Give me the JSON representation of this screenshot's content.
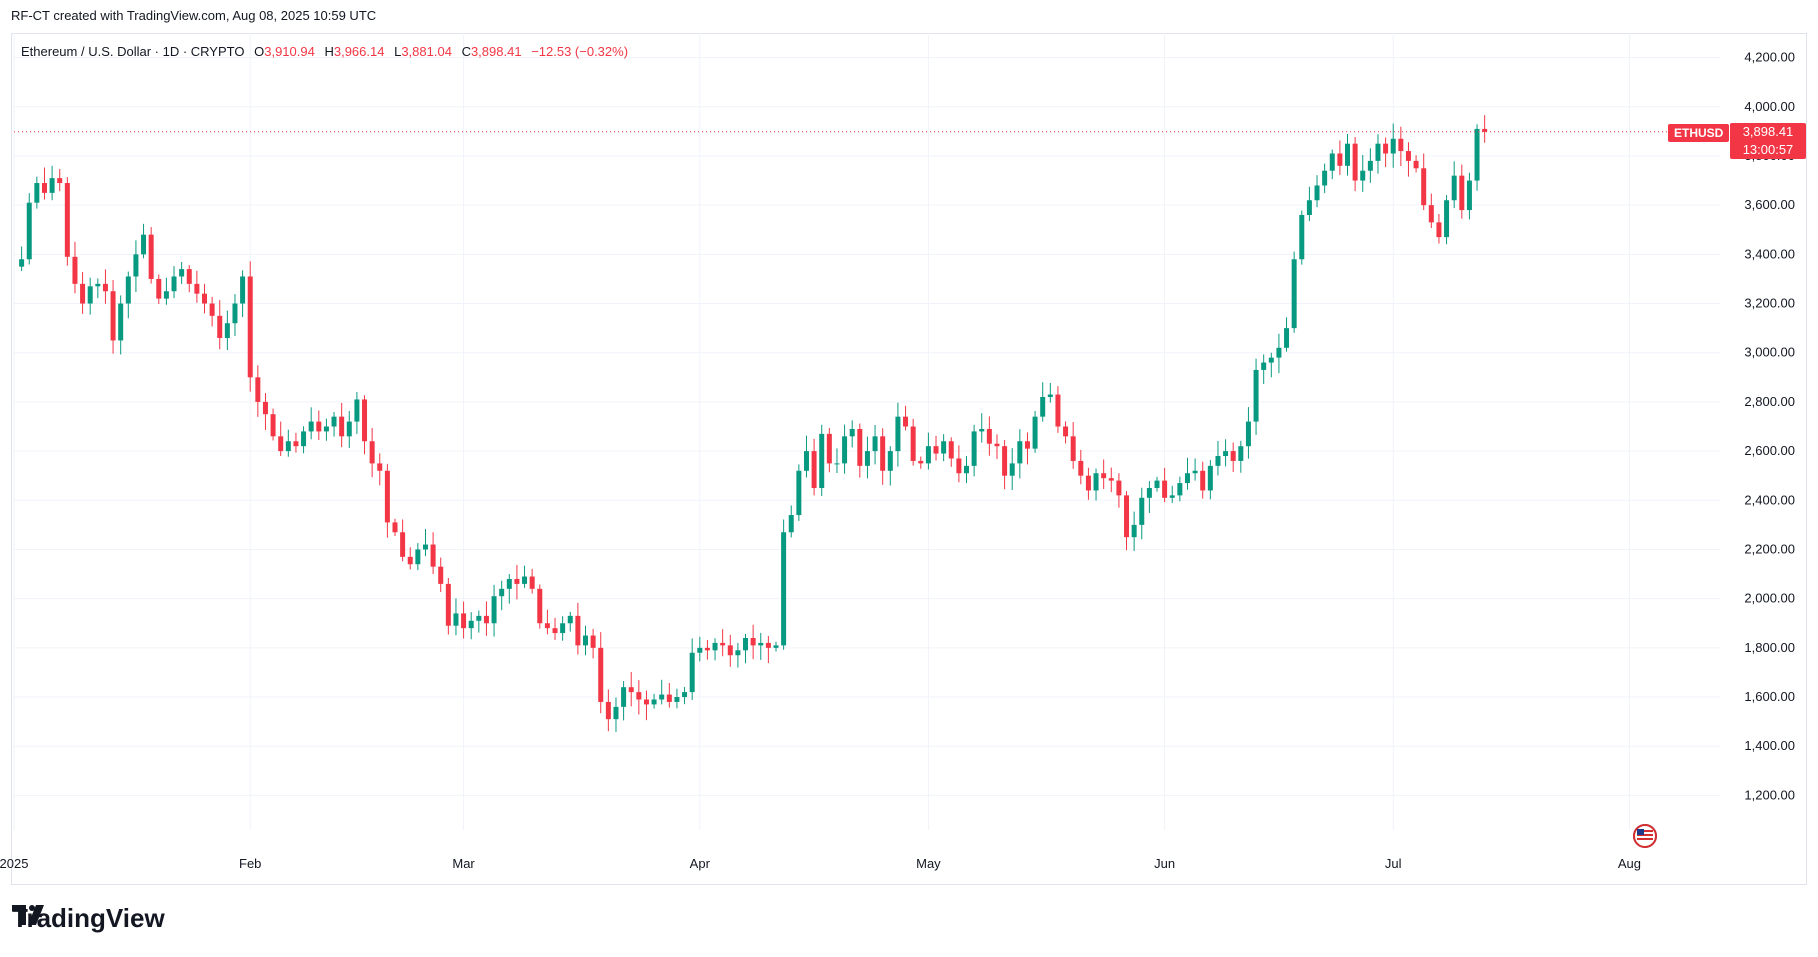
{
  "header": {
    "text": "RF-CT created with TradingView.com, Aug 08, 2025 10:59 UTC"
  },
  "legend": {
    "symbol": "Ethereum / U.S. Dollar · 1D · CRYPTO",
    "o_label": "O",
    "o_value": "3,910.94",
    "h_label": "H",
    "h_value": "3,966.14",
    "l_label": "L",
    "l_value": "3,881.04",
    "c_label": "C",
    "c_value": "3,898.41",
    "change": "−12.53 (−0.32%)"
  },
  "price_tag": {
    "symbol": "ETHUSD",
    "price": "3,898.41",
    "countdown": "13:00:57"
  },
  "footer": {
    "brand": "TradingView"
  },
  "colors": {
    "up": "#089981",
    "down": "#f23645",
    "grid": "#f0f3fa",
    "axis_text": "#131722"
  },
  "icons": [
    "tradingview-logo-icon",
    "lightning-icon",
    "us-flag-icon"
  ],
  "chart_data": {
    "type": "candlestick",
    "title": "Ethereum / U.S. Dollar · 1D · CRYPTO",
    "ylim": [
      1100,
      4300
    ],
    "yticks": [
      {
        "value": 1200,
        "label": "1,200.00"
      },
      {
        "value": 1400,
        "label": "1,400.00"
      },
      {
        "value": 1600,
        "label": "1,600.00"
      },
      {
        "value": 1800,
        "label": "1,800.00"
      },
      {
        "value": 2000,
        "label": "2,000.00"
      },
      {
        "value": 2200,
        "label": "2,200.00"
      },
      {
        "value": 2400,
        "label": "2,400.00"
      },
      {
        "value": 2600,
        "label": "2,600.00"
      },
      {
        "value": 2800,
        "label": "2,800.00"
      },
      {
        "value": 3000,
        "label": "3,000.00"
      },
      {
        "value": 3200,
        "label": "3,200.00"
      },
      {
        "value": 3400,
        "label": "3,400.00"
      },
      {
        "value": 3600,
        "label": "3,600.00"
      },
      {
        "value": 3800,
        "label": "3,800.00"
      },
      {
        "value": 4000,
        "label": "4,000.00"
      },
      {
        "value": 4200,
        "label": "4,200.00"
      }
    ],
    "xticks": [
      {
        "day": 0,
        "label": "2025"
      },
      {
        "day": 31,
        "label": "Feb"
      },
      {
        "day": 59,
        "label": "Mar"
      },
      {
        "day": 90,
        "label": "Apr"
      },
      {
        "day": 120,
        "label": "May"
      },
      {
        "day": 151,
        "label": "Jun"
      },
      {
        "day": 181,
        "label": "Jul"
      },
      {
        "day": 212,
        "label": "Aug"
      }
    ],
    "last_price": 3898.41,
    "closes": [
      3350,
      3380,
      3610,
      3690,
      3650,
      3710,
      3690,
      3390,
      3280,
      3200,
      3270,
      3280,
      3250,
      3050,
      3200,
      3310,
      3400,
      3480,
      3300,
      3220,
      3250,
      3310,
      3340,
      3280,
      3240,
      3200,
      3150,
      3060,
      3120,
      3200,
      3310,
      2900,
      2800,
      2750,
      2660,
      2600,
      2640,
      2620,
      2680,
      2720,
      2680,
      2700,
      2740,
      2660,
      2720,
      2810,
      2640,
      2550,
      2520,
      2310,
      2270,
      2170,
      2140,
      2200,
      2220,
      2130,
      2060,
      1890,
      1940,
      1880,
      1910,
      1930,
      1900,
      2010,
      2040,
      2080,
      2060,
      2090,
      2040,
      1900,
      1880,
      1860,
      1900,
      1930,
      1810,
      1850,
      1800,
      1580,
      1510,
      1560,
      1640,
      1620,
      1590,
      1570,
      1590,
      1610,
      1580,
      1600,
      1620,
      1780,
      1800,
      1790,
      1820,
      1810,
      1770,
      1790,
      1840,
      1810,
      1820,
      1800,
      1810,
      2270,
      2340,
      2520,
      2600,
      2450,
      2670,
      2550,
      2550,
      2660,
      2690,
      2540,
      2600,
      2660,
      2520,
      2600,
      2740,
      2700,
      2560,
      2550,
      2620,
      2590,
      2640,
      2570,
      2510,
      2540,
      2680,
      2690,
      2630,
      2620,
      2500,
      2550,
      2640,
      2610,
      2740,
      2820,
      2830,
      2700,
      2660,
      2560,
      2500,
      2440,
      2510,
      2490,
      2480,
      2420,
      2250,
      2300,
      2410,
      2450,
      2480,
      2410,
      2420,
      2470,
      2510,
      2520,
      2440,
      2540,
      2580,
      2600,
      2560,
      2620,
      2720,
      2930,
      2960,
      2980,
      3020,
      3100,
      3380,
      3560,
      3620,
      3680,
      3740,
      3810,
      3760,
      3850,
      3700,
      3740,
      3780,
      3850,
      3810,
      3870,
      3820,
      3780,
      3750,
      3600,
      3530,
      3470,
      3620,
      3720,
      3580,
      3700,
      3910,
      3898
    ],
    "xlabel": "",
    "ylabel": ""
  }
}
